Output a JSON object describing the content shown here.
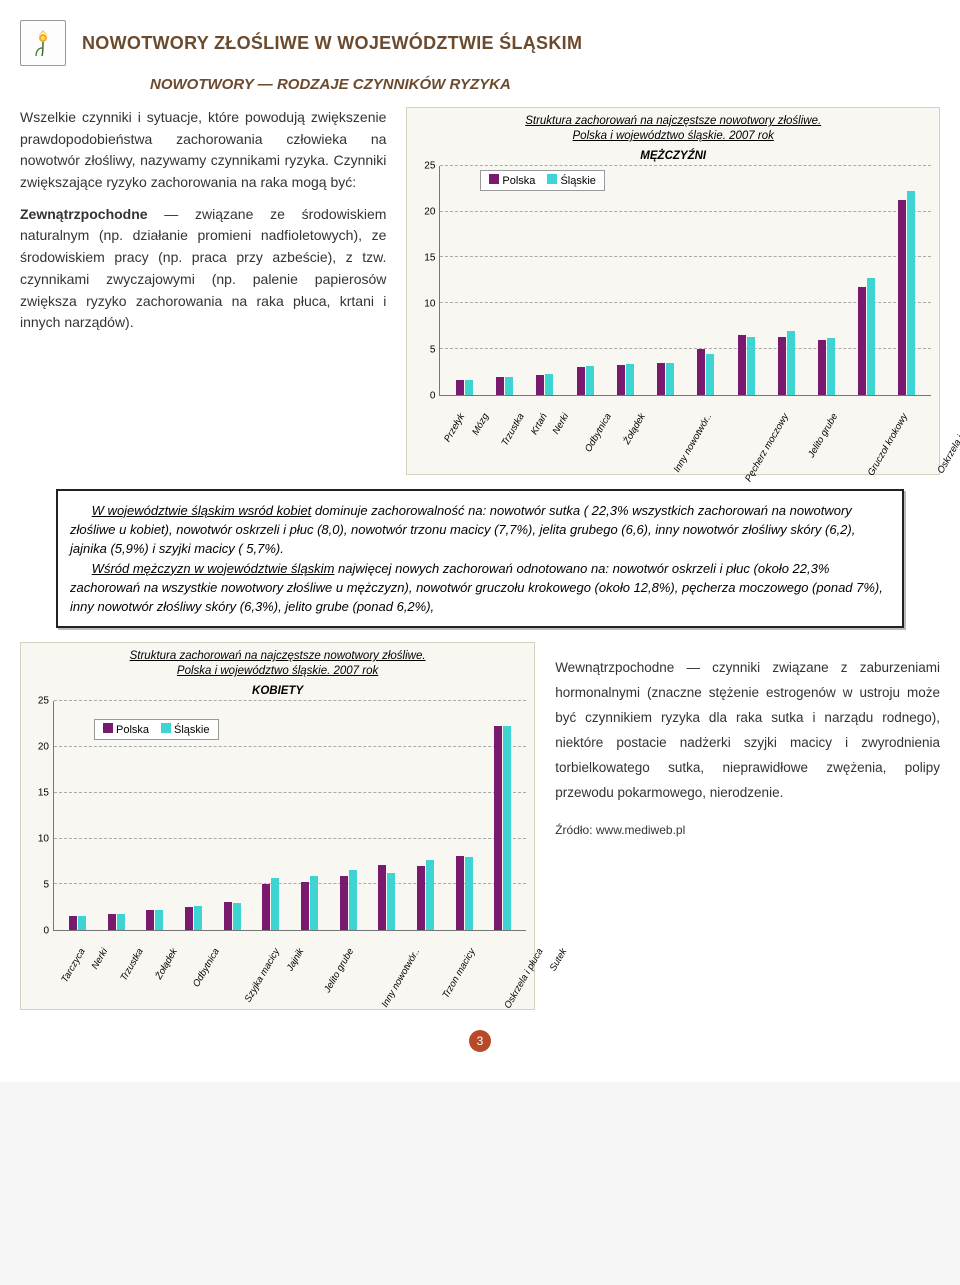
{
  "header": {
    "title": "NOWOTWORY ZŁOŚLIWE W WOJEWÓDZTWIE ŚLĄSKIM",
    "subtitle": "NOWOTWORY — RODZAJE CZYNNIKÓW RYZYKA"
  },
  "left_text": {
    "p1": "Wszelkie czynniki i sytuacje, które powodują zwiększenie prawdopodobieństwa zachorowania człowieka na nowotwór złośliwy, nazywamy czynnikami ryzyka. Czynniki zwiększające ryzyko zachorowania na raka mogą być:",
    "p2_bold": "Zewnątrzpochodne",
    "p2_rest": " — związane ze środowiskiem naturalnym (np. działanie promieni nadfioletowych), ze środowiskiem pracy (np. praca przy azbeście), z tzw. czynnikami zwyczajowymi (np. palenie papierosów zwiększa ryzyko zachorowania na raka płuca, krtani i innych narządów)."
  },
  "chart1": {
    "title_line1": "Struktura zachorowań na najczęstsze nowotwory złośliwe.",
    "title_line2": "Polska i województwo śląskie. 2007 rok",
    "subtitle": "MĘŻCZYŹNI",
    "legend_a": "Polska",
    "legend_b": "Śląskie",
    "color_a": "#7a1a6f",
    "color_b": "#3fd4d4",
    "bg": "#f9f7f2",
    "border": "#d8d0bf",
    "grid_color": "#aaaaaa",
    "ylim": [
      0,
      25
    ],
    "ytick_step": 5,
    "categories": [
      "Przełyk",
      "Mózg",
      "Trzustka",
      "Krtań",
      "Nerki",
      "Odbytnica",
      "Żołądek",
      "Inny nowotwór..",
      "Pęcherz moczowy",
      "Jelito grube",
      "Gruczoł krokowy",
      "Oskrzela i płuca"
    ],
    "series_a": [
      1.6,
      2.0,
      2.2,
      3.0,
      3.3,
      3.5,
      5.0,
      6.5,
      6.3,
      6.0,
      11.8,
      21.3
    ],
    "series_b": [
      1.6,
      1.9,
      2.3,
      3.1,
      3.4,
      3.5,
      4.5,
      6.3,
      7.0,
      6.2,
      12.8,
      22.3
    ]
  },
  "callout": {
    "para1_a": "W województwie śląskim wsród kobiet",
    "para1_b": " dominuje zachorowalność na: nowotwór sutka ( 22,3% wszystkich zachorowań na nowotwory złośliwe u kobiet), nowotwór oskrzeli i płuc (8,0), nowotwór trzonu macicy (7,7%), jelita grubego (6,6), inny nowotwór złośliwy skóry (6,2), jajnika (5,9%) i szyjki macicy ( 5,7%).",
    "para2_a": "Wśród mężczyzn w województwie śląskim",
    "para2_b": " najwięcej nowych zachorowań odnotowano na: nowotwór oskrzeli i płuc (około 22,3% zachorowań na wszystkie nowotwory złośliwe u mężczyzn), nowotwór gruczołu krokowego (około 12,8%), pęcherza moczowego (ponad 7%), inny nowotwór złośliwy skóry (6,3%), jelito grube (ponad 6,2%),"
  },
  "chart2": {
    "title_line1": "Struktura zachorowań na najczęstsze nowotwory złośliwe.",
    "title_line2": "Polska i województwo śląskie. 2007 rok",
    "subtitle": "KOBIETY",
    "legend_a": "Polska",
    "legend_b": "Śląskie",
    "color_a": "#7a1a6f",
    "color_b": "#3fd4d4",
    "ylim": [
      0,
      25
    ],
    "ytick_step": 5,
    "categories": [
      "Tarczyca",
      "Nerki",
      "Trzustka",
      "Żołądek",
      "Odbytnica",
      "Szyjka macicy",
      "Jajnik",
      "Jelito grube",
      "Inny nowotwór..",
      "Trzon macicy",
      "Oskrzela i płuca",
      "Sutek"
    ],
    "series_a": [
      1.6,
      1.8,
      2.2,
      2.5,
      3.1,
      5.0,
      5.3,
      5.9,
      7.1,
      7.0,
      8.1,
      22.3
    ],
    "series_b": [
      1.6,
      1.8,
      2.2,
      2.6,
      3.0,
      5.7,
      5.9,
      6.6,
      6.2,
      7.7,
      8.0,
      22.3
    ]
  },
  "right_text": {
    "bold": "Wewnątrzpochodne",
    "rest": " — czynniki związane z zaburzeniami hormonalnymi (znaczne stężenie estrogenów w ustroju może być czynnikiem ryzyka dla raka sutka i narządu rodnego), niektóre postacie nadżerki szyjki macicy i zwyrodnienia torbielkowatego sutka, nieprawidłowe zwężenia, polipy przewodu pokarmowego, nierodzenie.",
    "source": "Źródło: www.mediweb.pl"
  },
  "page_number": "3"
}
